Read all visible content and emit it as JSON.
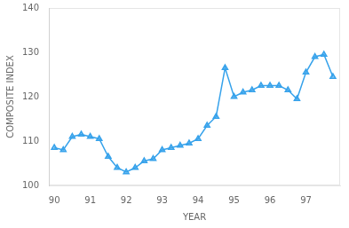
{
  "chart_data": {
    "type": "line",
    "x": [
      1990.0,
      1990.25,
      1990.5,
      1990.75,
      1991.0,
      1991.25,
      1991.5,
      1991.75,
      1992.0,
      1992.25,
      1992.5,
      1992.75,
      1993.0,
      1993.25,
      1993.5,
      1993.75,
      1994.0,
      1994.25,
      1994.5,
      1994.75,
      1995.0,
      1995.25,
      1995.5,
      1995.75,
      1996.0,
      1996.25,
      1996.5,
      1996.75,
      1997.0,
      1997.25,
      1997.5,
      1997.75
    ],
    "values": [
      108.5,
      108.0,
      111.0,
      111.5,
      111.0,
      110.5,
      106.5,
      104.0,
      103.0,
      104.0,
      105.5,
      106.0,
      108.0,
      108.5,
      109.0,
      109.5,
      110.5,
      113.5,
      115.5,
      126.5,
      120.0,
      121.0,
      121.5,
      122.5,
      122.5,
      122.5,
      121.5,
      119.5,
      125.5,
      129.0,
      129.5,
      124.5
    ],
    "xlim": [
      1989.85,
      1997.95
    ],
    "ylim": [
      100,
      140
    ],
    "xticks": [
      {
        "value": 1990,
        "label": "90"
      },
      {
        "value": 1991,
        "label": "91"
      },
      {
        "value": 1992,
        "label": "92"
      },
      {
        "value": 1993,
        "label": "93"
      },
      {
        "value": 1994,
        "label": "94"
      },
      {
        "value": 1995,
        "label": "95"
      },
      {
        "value": 1996,
        "label": "96"
      },
      {
        "value": 1997,
        "label": "97"
      }
    ],
    "yticks": [
      100,
      110,
      120,
      130,
      140
    ],
    "xlabel": "YEAR",
    "ylabel": "COMPOSITE INDEX",
    "grid": false,
    "marker": "triangle"
  }
}
